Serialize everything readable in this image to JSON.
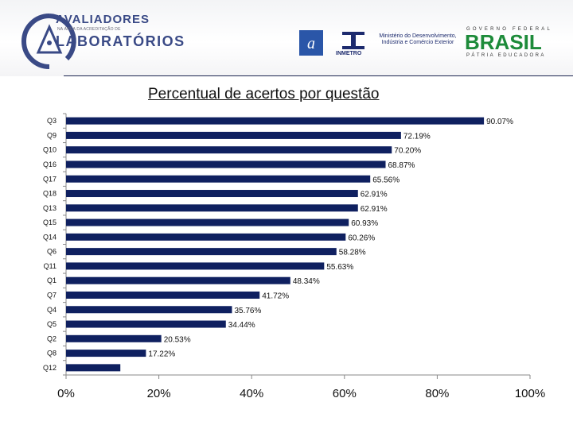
{
  "header": {
    "logo_title_1": "AVALIADORES",
    "logo_subtitle": "NA ÁREA DA ACREDITAÇÃO DE",
    "logo_title_2": "LABORATÓRIOS",
    "inmetro_label": "INMETRO",
    "ministerio_text": "Ministério do Desenvolvimento, Indústria e Comércio Exterior",
    "gov_line1": "GOVERNO FEDERAL",
    "gov_brasil": "BRASIL",
    "gov_line2": "PÁTRIA EDUCADORA"
  },
  "colors": {
    "bar": "#0f2060",
    "axis": "#888888",
    "accent_green": "#1d8b3a",
    "accent_blue": "#3a4a86"
  },
  "icons": [
    "avaliadores-logo-icon",
    "partner-logo-icon",
    "inmetro-logo-icon"
  ],
  "chart_data": {
    "type": "bar",
    "orientation": "horizontal",
    "title": "Percentual de acertos por questão",
    "categories": [
      "Q3",
      "Q9",
      "Q10",
      "Q16",
      "Q17",
      "Q18",
      "Q13",
      "Q15",
      "Q14",
      "Q6",
      "Q11",
      "Q1",
      "Q7",
      "Q4",
      "Q5",
      "Q2",
      "Q8",
      "Q12"
    ],
    "values": [
      90.07,
      72.19,
      70.2,
      68.87,
      65.56,
      62.91,
      62.91,
      60.93,
      60.26,
      58.28,
      55.63,
      48.34,
      41.72,
      35.76,
      34.44,
      20.53,
      17.22,
      11.7
    ],
    "data_labels": [
      "90.07%",
      "72.19%",
      "70.20%",
      "68.87%",
      "65.56%",
      "62.91%",
      "62.91%",
      "60.93%",
      "60.26%",
      "58.28%",
      "55.63%",
      "48.34%",
      "41.72%",
      "35.76%",
      "34.44%",
      "20.53%",
      "17.22%",
      ""
    ],
    "x_ticks": [
      "0%",
      "20%",
      "40%",
      "60%",
      "80%",
      "100%"
    ],
    "xlim": [
      0,
      100
    ],
    "grid": false,
    "legend": "none"
  }
}
